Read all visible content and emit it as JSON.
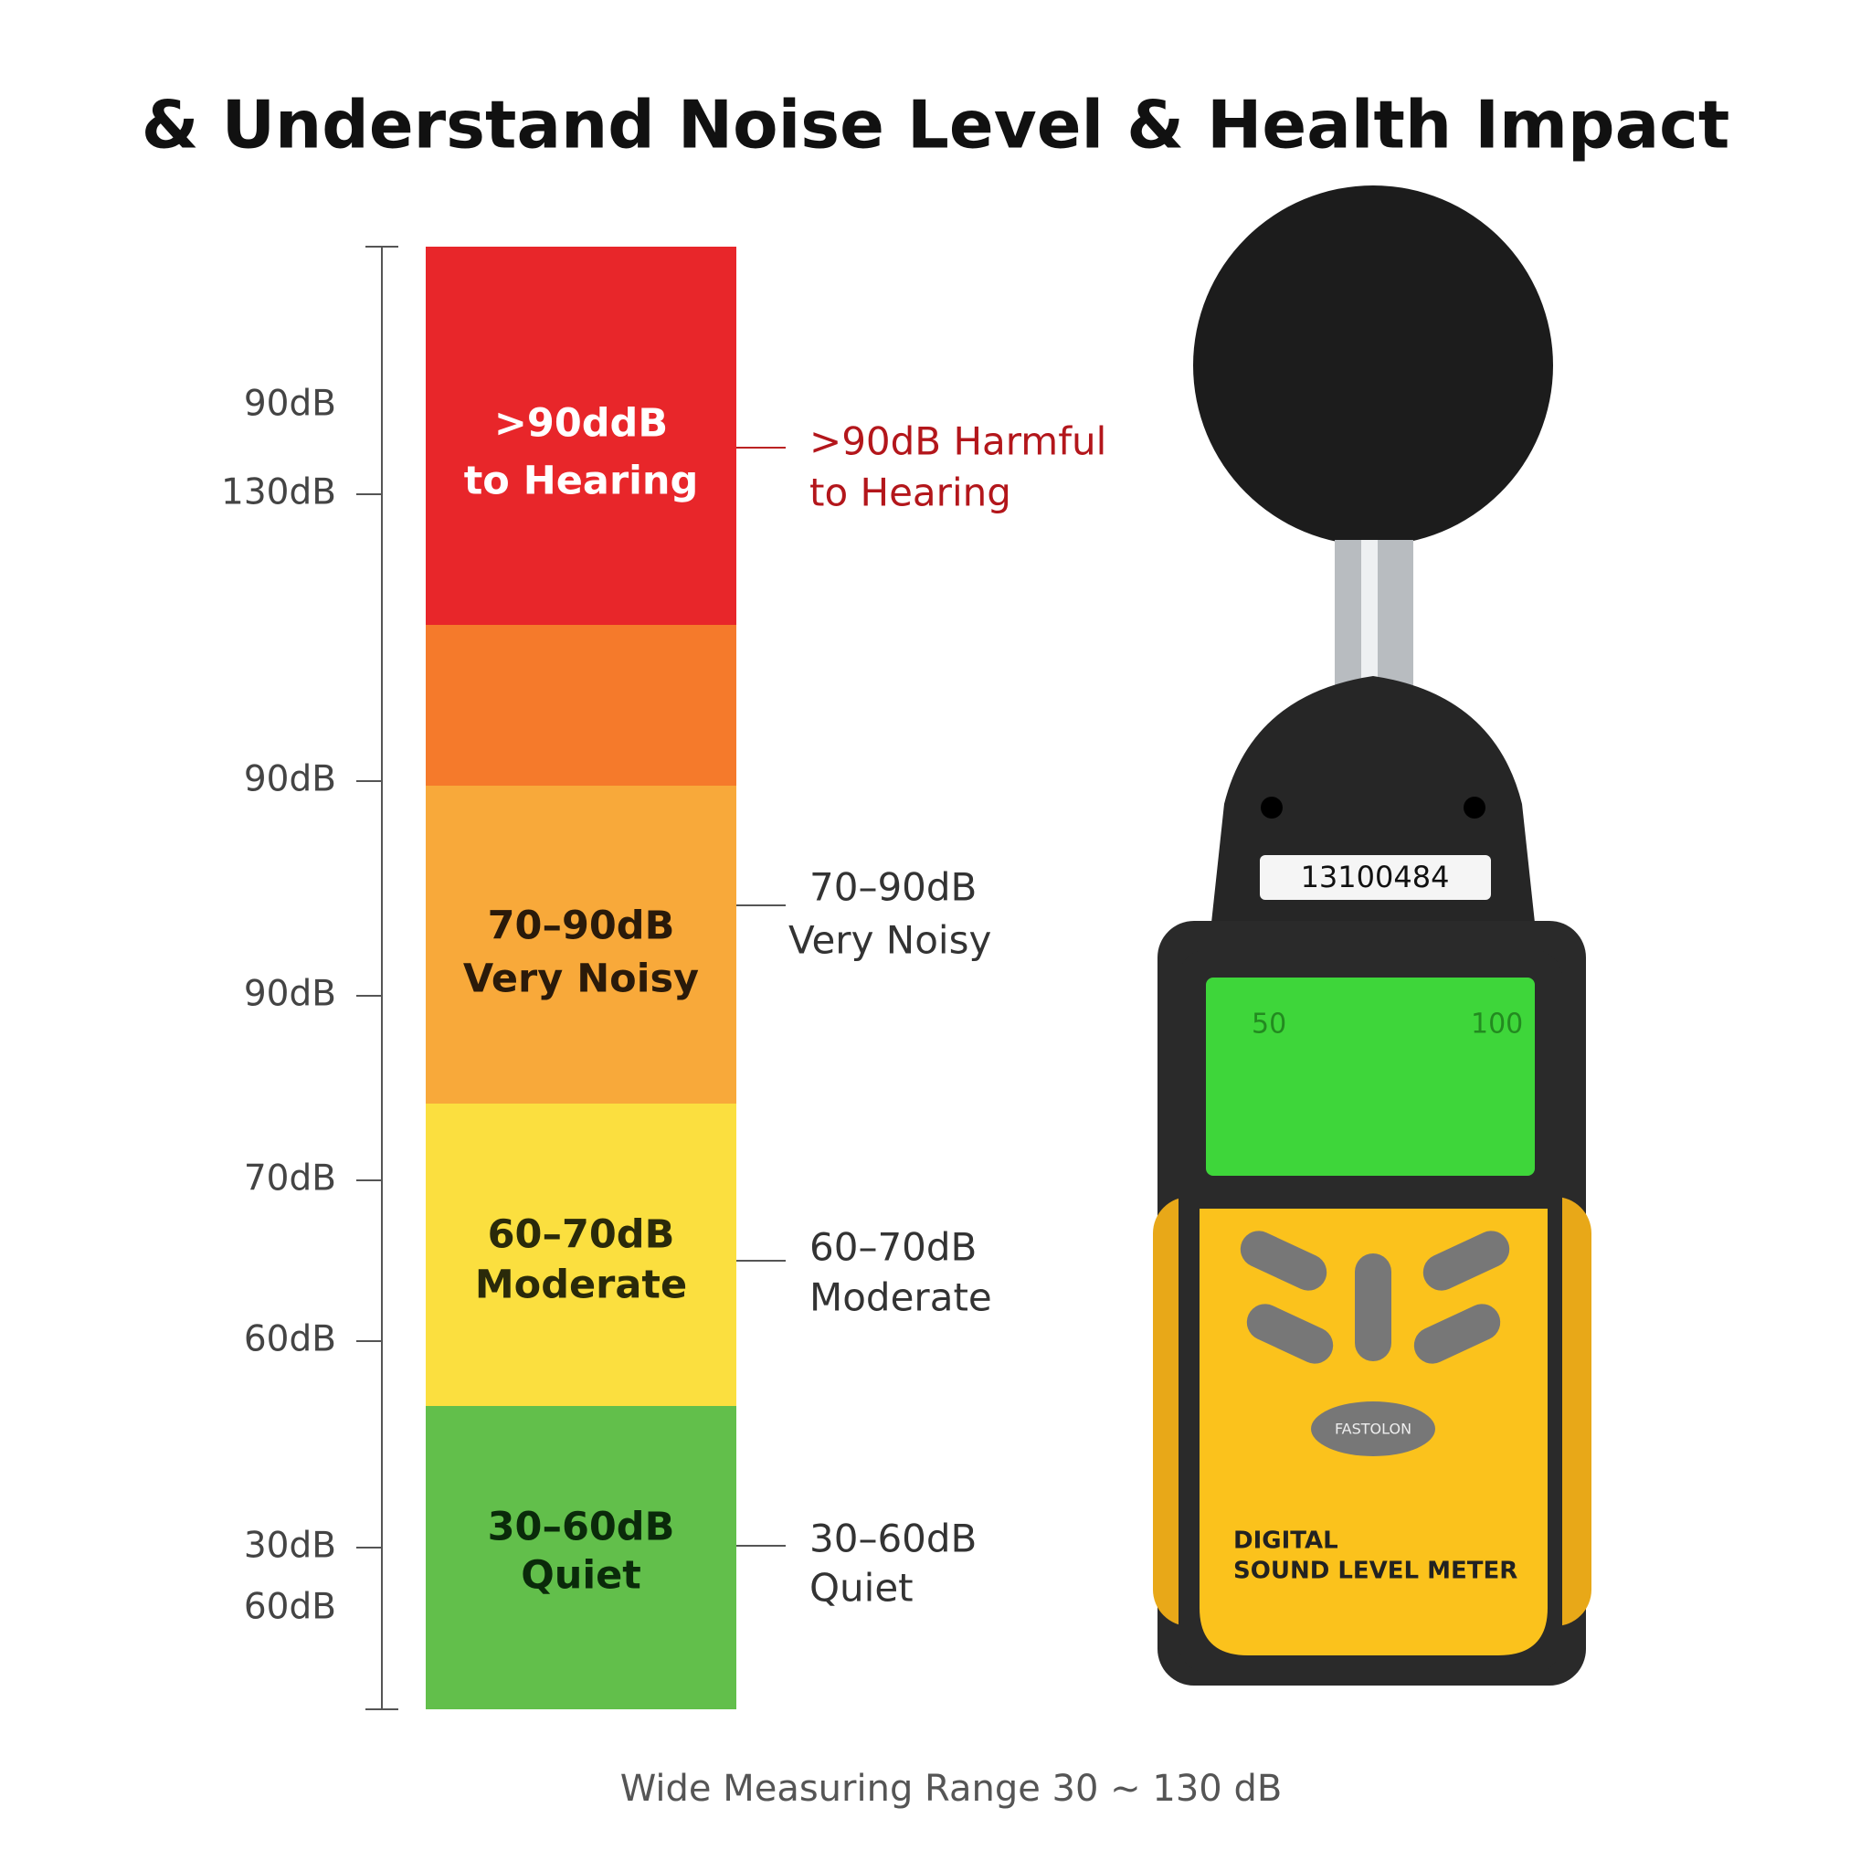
{
  "title": "& Understand Noise Level & Health Impact",
  "scale": {
    "labels": [
      "90dB",
      "130dB",
      "90dB",
      "90dB",
      "70dB",
      "60dB",
      "30dB",
      "60dB"
    ]
  },
  "bands": [
    {
      "lines": [
        ">90ddB",
        "to Hearing"
      ]
    },
    {
      "lines": []
    },
    {
      "lines": [
        "70–90dB",
        "Very Noisy"
      ]
    },
    {
      "lines": [
        "60–70dB",
        "Moderate"
      ]
    },
    {
      "lines": [
        "30–60dB",
        "Quiet"
      ]
    }
  ],
  "callouts": [
    {
      "lines": [
        ">90dB Harmful",
        "to Hearing"
      ]
    },
    {
      "lines": [
        "70–90dB",
        "Very Noisy"
      ]
    },
    {
      "lines": [
        "60–70dB",
        "Moderate"
      ]
    },
    {
      "lines": [
        "30–60dB",
        "Quiet"
      ]
    }
  ],
  "device": {
    "serial": "13100484",
    "screen": [
      "50",
      "100"
    ],
    "button": "FASTOLON",
    "name": [
      "DIGITAL",
      "SOUND LEVEL METER"
    ]
  },
  "footer": "Wide Measuring Range 30 ~ 130 dB"
}
